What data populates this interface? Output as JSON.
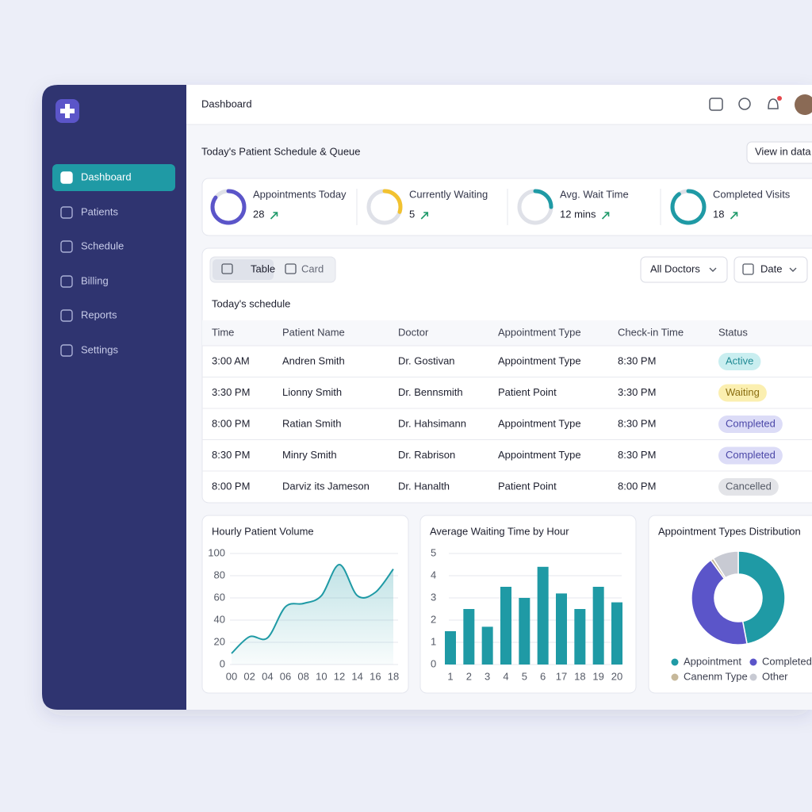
{
  "sidebar": {
    "nav": [
      "Dashboard",
      "Patients",
      "Schedule",
      "Billing",
      "Reports",
      "Settings"
    ],
    "active": 0
  },
  "header": {
    "title": "Dashboard"
  },
  "page": {
    "title": "Today's Patient Schedule & Queue",
    "button": "View in data"
  },
  "stats": [
    {
      "label": "Appointments Today",
      "value": "28",
      "ring_percent": 85,
      "color": "#5b55c9"
    },
    {
      "label": "Currently Waiting",
      "value": "5",
      "ring_percent": 30,
      "color": "#f2c230"
    },
    {
      "label": "Avg. Wait Time",
      "value": "12 mins",
      "ring_percent": 25,
      "color": "#1f9aa5"
    },
    {
      "label": "Completed Visits",
      "value": "18",
      "ring_percent": 90,
      "color": "#1f9aa5"
    }
  ],
  "view_toggle": [
    "Table",
    "Card"
  ],
  "filters": [
    "All Doctors",
    "Date"
  ],
  "table": {
    "title": "Today's schedule",
    "columns": [
      "Time",
      "Patient Name",
      "Doctor",
      "Appointment Type",
      "Check-in Time",
      "Status"
    ],
    "rows": [
      [
        "3:00 AM",
        "Andren Smith",
        "Dr. Gostivan",
        "Appointment Type",
        "8:30 PM",
        "Active"
      ],
      [
        "3:30 PM",
        "Lionny Smith",
        "Dr. Bennsmith",
        "Patient Point",
        "3:30 PM",
        "Waiting"
      ],
      [
        "8:00 PM",
        "Ratian Smith",
        "Dr. Hahsimann",
        "Appointment Type",
        "8:30 PM",
        "Completed"
      ],
      [
        "8:30 PM",
        "Minry Smith",
        "Dr. Rabrison",
        "Appointment Type",
        "8:30 PM",
        "Completed"
      ],
      [
        "8:00 PM",
        "Darviz its Jameson",
        "Dr. Hanalth",
        "Patient Point",
        "8:00 PM",
        "Cancelled"
      ]
    ],
    "status_styles": [
      {
        "bg": "#c9eef0",
        "fg": "#1f8a94"
      },
      {
        "bg": "#fbefb0",
        "fg": "#8a6d10"
      },
      {
        "bg": "#dcdcf7",
        "fg": "#4b47a8"
      },
      {
        "bg": "#dcdcf7",
        "fg": "#4b47a8"
      },
      {
        "bg": "#e3e4e8",
        "fg": "#555a66"
      }
    ]
  },
  "charts": [
    {
      "type": "line",
      "title": "Hourly Patient Volume",
      "categories": [
        "00",
        "02",
        "04",
        "06",
        "08",
        "10",
        "12",
        "14",
        "16",
        "18"
      ],
      "values": [
        10,
        25,
        24,
        52,
        55,
        62,
        90,
        62,
        65,
        86
      ],
      "color": "#1f9aa5",
      "ylim": [
        0,
        100
      ],
      "yticks": [
        0,
        20,
        40,
        60,
        80,
        100
      ],
      "grid": true
    },
    {
      "type": "bar",
      "title": "Average Waiting Time by Hour",
      "categories": [
        "1",
        "2",
        "3",
        "4",
        "5",
        "6",
        "17",
        "18",
        "19",
        "20"
      ],
      "values": [
        1.5,
        2.5,
        1.7,
        3.5,
        3.0,
        4.4,
        3.2,
        2.5,
        3.5,
        2.8
      ],
      "color": "#1f9aa5",
      "ylim": [
        0,
        5
      ],
      "yticks": [
        0,
        1,
        2,
        3,
        4,
        5
      ],
      "grid": true
    },
    {
      "type": "pie",
      "title": "Appointment Types Distribution",
      "categories": [
        "Appointment",
        "Completed",
        "Canenm Type",
        "Other"
      ],
      "values": [
        47,
        43,
        1,
        9
      ],
      "colors": [
        "#1f9aa5",
        "#5b55c9",
        "#c6b89a",
        "#c8cad3"
      ]
    }
  ]
}
